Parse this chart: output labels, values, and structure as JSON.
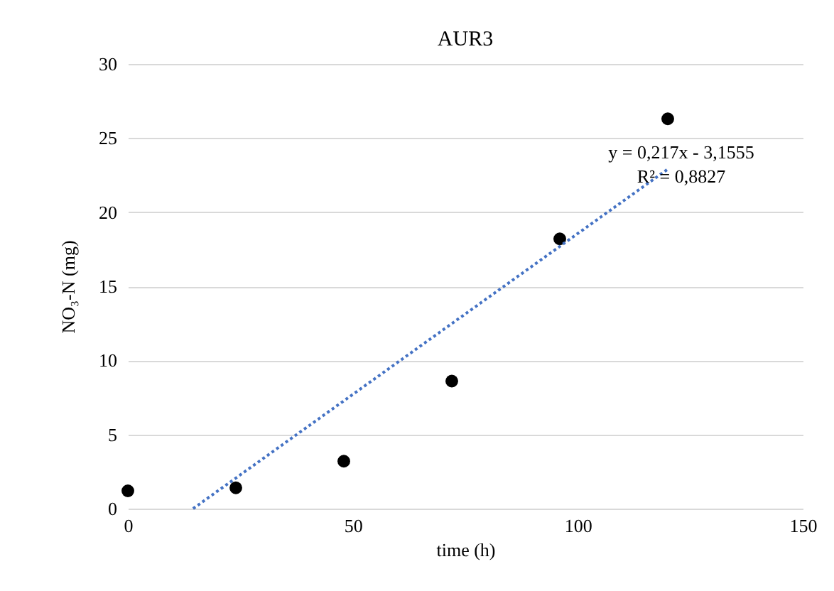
{
  "chart_data": {
    "type": "scatter",
    "title": "AUR3",
    "xlabel": "time (h)",
    "ylabel": "NO₃-N (mg)",
    "series": [
      {
        "type": "scatter",
        "color": "#000000",
        "x": [
          0,
          24,
          48,
          72,
          96,
          120
        ],
        "values": [
          1.2,
          1.4,
          3.2,
          8.6,
          18.2,
          26.3
        ],
        "marker": "circle"
      },
      {
        "type": "line",
        "color": "#4472c4",
        "x": [
          14.5,
          120
        ],
        "values": [
          0,
          22.9
        ],
        "line_style": "dotted"
      }
    ],
    "annotations": [
      "y = 0,217x - 3,1555",
      "R² = 0,8827"
    ],
    "xlim": [
      0,
      150
    ],
    "xticks": [
      0,
      50,
      100,
      150
    ],
    "ylim": [
      0,
      30
    ],
    "yticks": [
      0,
      5,
      10,
      15,
      20,
      25,
      30
    ],
    "grid": "y"
  }
}
